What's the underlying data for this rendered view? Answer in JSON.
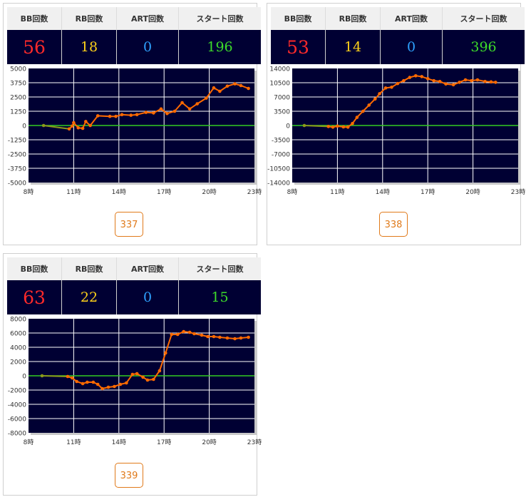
{
  "labels": {
    "bb": "BB回数",
    "rb": "RB回数",
    "art": "ART回数",
    "start": "スタート回数"
  },
  "cards": [
    {
      "bb": "56",
      "rb": "18",
      "art": "0",
      "start": "196",
      "machine": "337",
      "chart_data": {
        "type": "line",
        "ylim": [
          -5000,
          5000
        ],
        "y_ticks": [
          "5000",
          "3750",
          "2500",
          "1250",
          "0",
          "-1250",
          "-2500",
          "-3750",
          "-5000"
        ],
        "x_ticks": [
          "8時",
          "11時",
          "14時",
          "17時",
          "20時",
          "23時"
        ],
        "xlim": [
          8,
          23
        ],
        "series": [
          {
            "x": [
              9.0,
              10.7,
              10.9,
              11.0,
              11.3,
              11.6,
              11.8,
              12.1,
              12.6,
              13.4,
              13.8,
              14.2,
              14.8,
              15.2,
              15.8,
              16.3,
              16.8,
              17.2,
              17.7,
              18.2,
              18.7,
              19.2,
              19.8,
              20.3,
              20.7,
              21.2,
              21.7,
              22.1,
              22.6
            ],
            "values": [
              0,
              -300,
              -50,
              250,
              -200,
              -250,
              350,
              0,
              850,
              800,
              800,
              950,
              900,
              950,
              1150,
              1100,
              1450,
              1050,
              1250,
              2000,
              1450,
              1900,
              2400,
              3300,
              3000,
              3450,
              3650,
              3500,
              3250
            ]
          }
        ]
      }
    },
    {
      "bb": "53",
      "rb": "14",
      "art": "0",
      "start": "396",
      "machine": "338",
      "chart_data": {
        "type": "line",
        "ylim": [
          -14000,
          14000
        ],
        "y_ticks": [
          "14000",
          "10500",
          "7000",
          "3500",
          "0",
          "-3500",
          "-7000",
          "-10500",
          "-14000"
        ],
        "x_ticks": [
          "8時",
          "11時",
          "14時",
          "17時",
          "20時",
          "23時"
        ],
        "xlim": [
          8,
          23
        ],
        "series": [
          {
            "x": [
              8.8,
              10.4,
              10.7,
              11.0,
              11.4,
              11.7,
              12.0,
              12.3,
              12.7,
              13.1,
              13.5,
              13.8,
              14.2,
              14.6,
              15.0,
              15.4,
              15.8,
              16.2,
              16.6,
              17.0,
              17.4,
              17.8,
              18.2,
              18.7,
              19.1,
              19.5,
              19.9,
              20.3,
              20.8,
              21.2,
              21.5
            ],
            "values": [
              0,
              -250,
              -400,
              -150,
              -350,
              -400,
              500,
              2000,
              3500,
              5000,
              6500,
              7800,
              9200,
              9400,
              10300,
              11000,
              11800,
              12200,
              12000,
              11500,
              11000,
              10800,
              10200,
              10000,
              10600,
              11200,
              11000,
              11200,
              10800,
              10700,
              10600
            ]
          }
        ]
      }
    },
    {
      "bb": "63",
      "rb": "22",
      "art": "0",
      "start": "15",
      "machine": "339",
      "chart_data": {
        "type": "line",
        "ylim": [
          -8000,
          8000
        ],
        "y_ticks": [
          "8000",
          "6000",
          "4000",
          "2000",
          "0",
          "-2000",
          "-4000",
          "-6000",
          "-8000"
        ],
        "x_ticks": [
          "8時",
          "11時",
          "14時",
          "17時",
          "20時",
          "23時"
        ],
        "xlim": [
          8,
          23
        ],
        "series": [
          {
            "x": [
              8.9,
              10.6,
              10.9,
              11.2,
              11.6,
              11.9,
              12.3,
              12.6,
              12.9,
              13.3,
              13.7,
              14.1,
              14.5,
              14.9,
              15.2,
              15.6,
              15.9,
              16.3,
              16.7,
              17.1,
              17.5,
              17.9,
              18.3,
              18.7,
              19.0,
              19.5,
              19.9,
              20.3,
              20.7,
              21.2,
              21.7,
              22.1,
              22.6
            ],
            "values": [
              0,
              -100,
              -300,
              -800,
              -1100,
              -900,
              -900,
              -1200,
              -1800,
              -1600,
              -1500,
              -1200,
              -1000,
              200,
              300,
              -200,
              -600,
              -500,
              700,
              3200,
              5800,
              5800,
              6200,
              6100,
              5900,
              5700,
              5500,
              5500,
              5400,
              5300,
              5200,
              5300,
              5400
            ]
          }
        ]
      }
    }
  ],
  "colors": {
    "plot_bg": "#000033",
    "grid": "#ffffff",
    "zero_line": "#33cc22",
    "line": "#ff6a00",
    "early_line": "#8c9a1a",
    "label": "#333333"
  }
}
